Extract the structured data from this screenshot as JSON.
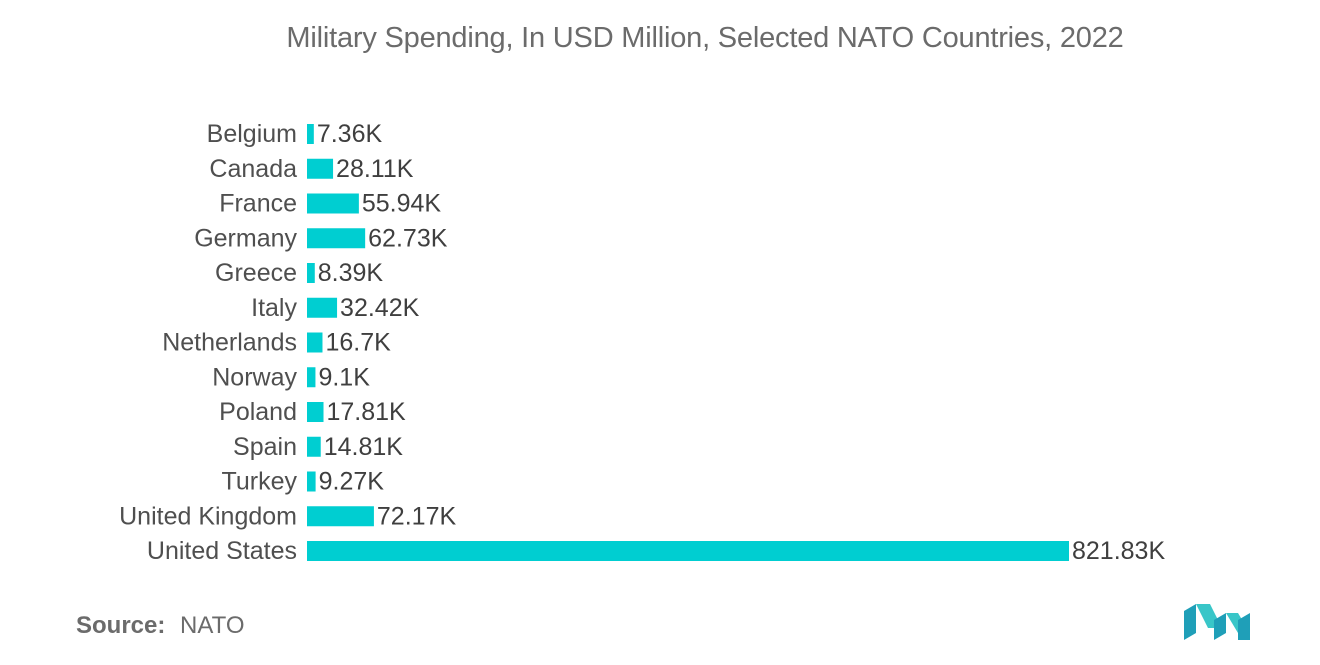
{
  "chart_data": {
    "type": "bar",
    "orientation": "horizontal",
    "title": "Military Spending, In USD Million, Selected NATO Countries, 2022",
    "xlabel": "",
    "ylabel": "",
    "categories": [
      "Belgium",
      "Canada",
      "France",
      "Germany",
      "Greece",
      "Italy",
      "Netherlands",
      "Norway",
      "Poland",
      "Spain",
      "Turkey",
      "United Kingdom",
      "United States"
    ],
    "values": [
      7360,
      28110,
      55940,
      62730,
      8390,
      32420,
      16700,
      9100,
      17810,
      14810,
      9270,
      72170,
      821830
    ],
    "value_labels": [
      "7.36K",
      "28.11K",
      "55.94K",
      "62.73K",
      "8.39K",
      "32.42K",
      "16.7K",
      "9.1K",
      "17.81K",
      "14.81K",
      "9.27K",
      "72.17K",
      "821.83K"
    ],
    "xlim": [
      0,
      821830
    ],
    "grid": false,
    "legend": "none",
    "bar_color": "#00ced1"
  },
  "source": {
    "label": "Source:",
    "value": "NATO"
  },
  "logo": {
    "icon": "mordor-intelligence-logo",
    "colors": [
      "#1f9fb8",
      "#39c6c8"
    ]
  }
}
